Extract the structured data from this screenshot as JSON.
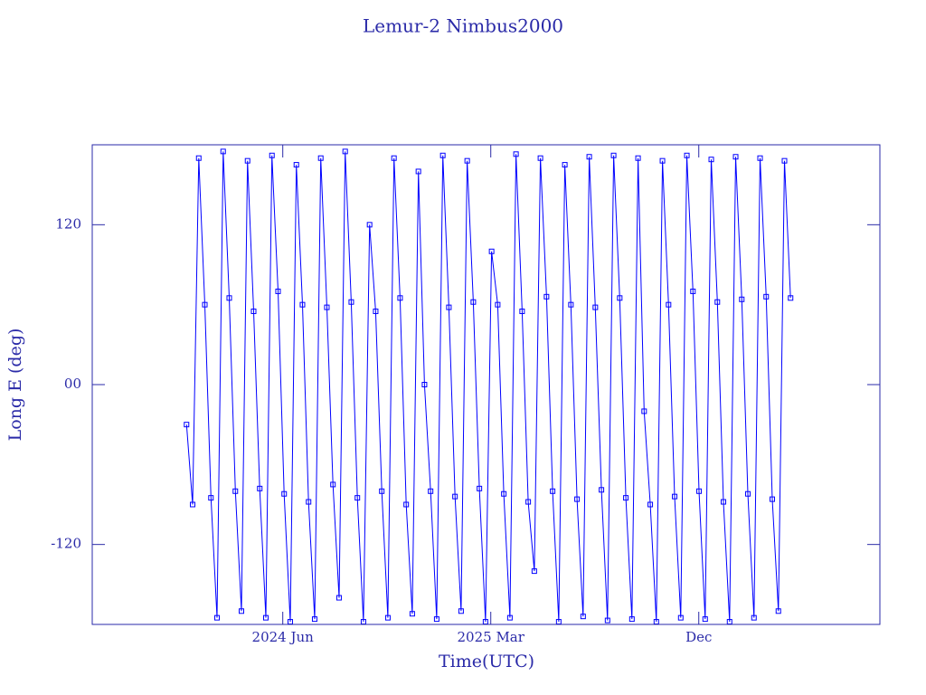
{
  "chart_data": {
    "type": "line",
    "title": "Lemur-2 Nimbus2000",
    "x_label": "Time(UTC)",
    "y_label": "Long E (deg)",
    "xlim": [
      2023.73,
      2026.57
    ],
    "xticks": [
      {
        "value": 2024.417,
        "label": "2024 Jun"
      },
      {
        "value": 2025.167,
        "label": "2025 Mar"
      },
      {
        "value": 2025.917,
        "label": "Dec"
      }
    ],
    "ylim": [
      -180,
      180
    ],
    "yticks": [
      -120,
      {
        "value": 0,
        "label": "00"
      },
      120
    ],
    "axis_color": "#2a2aa8",
    "series": [
      {
        "color": "#0000ff",
        "x": [
          2024.07,
          2024.092,
          2024.114,
          2024.136,
          2024.158,
          2024.18,
          2024.202,
          2024.224,
          2024.246,
          2024.268,
          2024.29,
          2024.312,
          2024.334,
          2024.356,
          2024.378,
          2024.4,
          2024.422,
          2024.444,
          2024.466,
          2024.488,
          2024.51,
          2024.532,
          2024.554,
          2024.576,
          2024.598,
          2024.62,
          2024.642,
          2024.664,
          2024.686,
          2024.708,
          2024.73,
          2024.752,
          2024.774,
          2024.796,
          2024.818,
          2024.84,
          2024.862,
          2024.884,
          2024.906,
          2024.928,
          2024.95,
          2024.972,
          2024.994,
          2025.016,
          2025.038,
          2025.06,
          2025.082,
          2025.104,
          2025.126,
          2025.148,
          2025.17,
          2025.192,
          2025.214,
          2025.236,
          2025.258,
          2025.28,
          2025.302,
          2025.324,
          2025.346,
          2025.368,
          2025.39,
          2025.412,
          2025.434,
          2025.456,
          2025.478,
          2025.5,
          2025.522,
          2025.544,
          2025.566,
          2025.588,
          2025.61,
          2025.632,
          2025.654,
          2025.676,
          2025.698,
          2025.72,
          2025.742,
          2025.764,
          2025.786,
          2025.808,
          2025.83,
          2025.852,
          2025.874,
          2025.896,
          2025.918,
          2025.94,
          2025.962,
          2025.984,
          2026.006,
          2026.028,
          2026.05,
          2026.072,
          2026.094,
          2026.116,
          2026.138,
          2026.16,
          2026.182,
          2026.204,
          2026.226,
          2026.248
        ],
        "values": [
          -30,
          -90,
          170,
          60,
          -85,
          -175,
          175,
          65,
          -80,
          -170,
          168,
          55,
          -78,
          -175,
          172,
          70,
          -82,
          -178,
          165,
          60,
          -88,
          -176,
          170,
          58,
          -75,
          -160,
          175,
          62,
          -85,
          -178,
          120,
          55,
          -80,
          -175,
          170,
          65,
          -90,
          -172,
          160,
          0,
          -80,
          -176,
          172,
          58,
          -84,
          -170,
          168,
          62,
          -78,
          -178,
          100,
          60,
          -82,
          -175,
          173,
          55,
          -88,
          -140,
          170,
          66,
          -80,
          -178,
          165,
          60,
          -86,
          -174,
          171,
          58,
          -79,
          -177,
          172,
          65,
          -85,
          -176,
          170,
          -20,
          -90,
          -178,
          168,
          60,
          -84,
          -175,
          172,
          70,
          -80,
          -176,
          169,
          62,
          -88,
          -178,
          171,
          64,
          -82,
          -175,
          170,
          66,
          -86,
          -170,
          168,
          65
        ]
      }
    ]
  }
}
